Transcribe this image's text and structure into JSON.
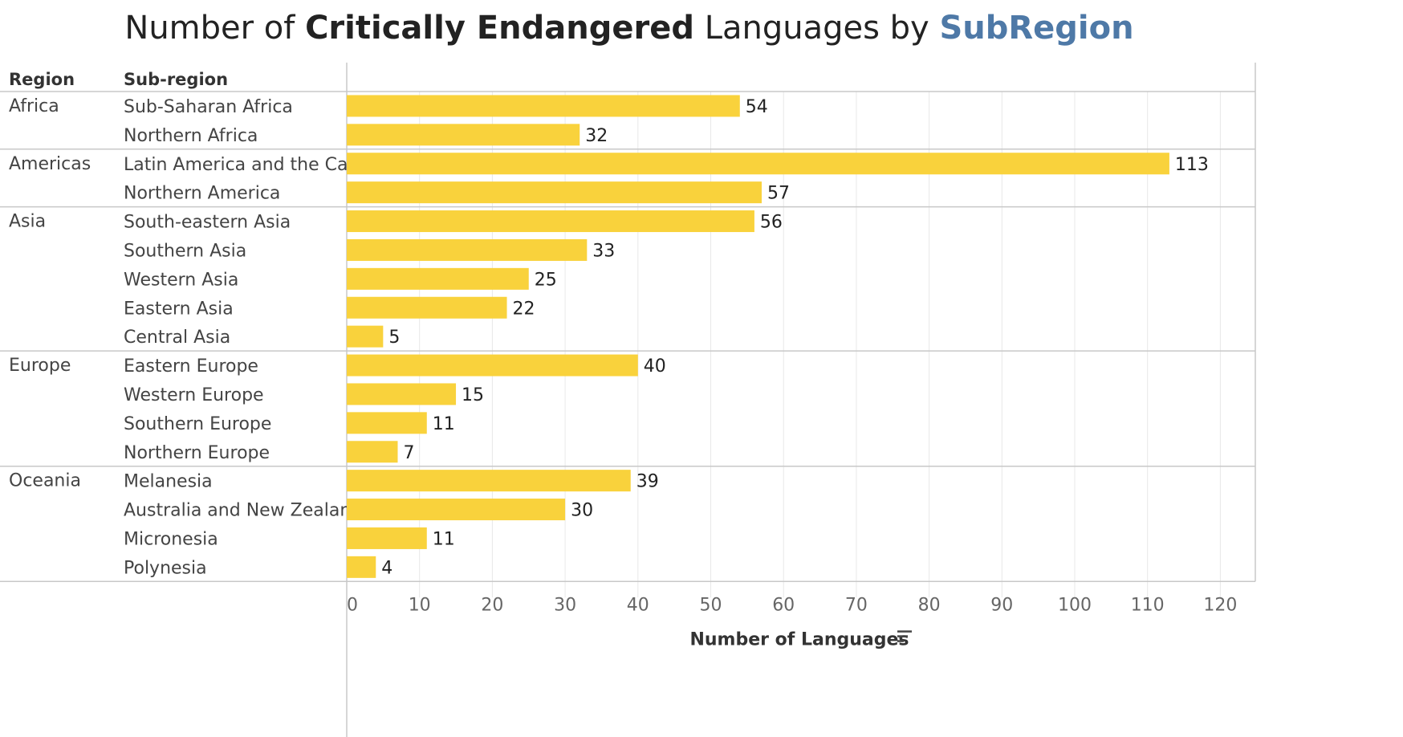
{
  "title": {
    "prefix": "Number of ",
    "bold": "Critically Endangered",
    "middle": " Languages by ",
    "accent": "SubRegion"
  },
  "colors": {
    "bar": "#F9D23C",
    "accent": "#4E79A7",
    "grid": "#E8E8E8",
    "divider": "#C8C8C8",
    "text": "#333333"
  },
  "headers": {
    "region": "Region",
    "subregion": "Sub-region"
  },
  "icons": {
    "sort": "sort-descending-icon"
  },
  "chart_data": {
    "type": "bar",
    "orientation": "horizontal",
    "xlabel": "Number of Languages",
    "xlim": [
      0,
      125
    ],
    "xticks": [
      0,
      10,
      20,
      30,
      40,
      50,
      60,
      70,
      80,
      90,
      100,
      110,
      120
    ],
    "grid": true,
    "groups": [
      {
        "region": "Africa",
        "rows": [
          {
            "subregion": "Sub-Saharan Africa",
            "value": 54
          },
          {
            "subregion": "Northern Africa",
            "value": 32
          }
        ]
      },
      {
        "region": "Americas",
        "rows": [
          {
            "subregion": "Latin America and the Car..",
            "value": 113
          },
          {
            "subregion": "Northern America",
            "value": 57
          }
        ]
      },
      {
        "region": "Asia",
        "rows": [
          {
            "subregion": "South-eastern Asia",
            "value": 56
          },
          {
            "subregion": "Southern Asia",
            "value": 33
          },
          {
            "subregion": "Western Asia",
            "value": 25
          },
          {
            "subregion": "Eastern Asia",
            "value": 22
          },
          {
            "subregion": "Central Asia",
            "value": 5
          }
        ]
      },
      {
        "region": "Europe",
        "rows": [
          {
            "subregion": "Eastern Europe",
            "value": 40
          },
          {
            "subregion": "Western Europe",
            "value": 15
          },
          {
            "subregion": "Southern Europe",
            "value": 11
          },
          {
            "subregion": "Northern Europe",
            "value": 7
          }
        ]
      },
      {
        "region": "Oceania",
        "rows": [
          {
            "subregion": "Melanesia",
            "value": 39
          },
          {
            "subregion": "Australia and New Zealand",
            "value": 30
          },
          {
            "subregion": "Micronesia",
            "value": 11
          },
          {
            "subregion": "Polynesia",
            "value": 4
          }
        ]
      }
    ]
  }
}
